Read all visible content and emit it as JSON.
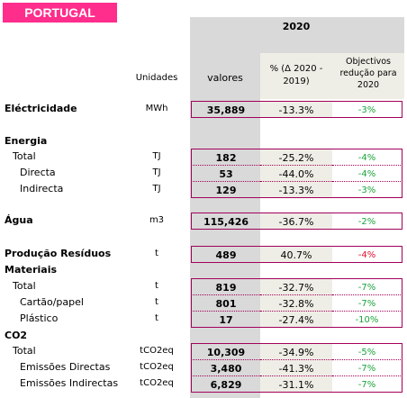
{
  "banner": "PORTUGAL",
  "header": {
    "year": "2020",
    "units_label": "Unidades",
    "valores_label": "valores",
    "pct_label_1": "% (Δ 2020 -",
    "pct_label_2": "2019)",
    "obj_label_1": "Objectivos",
    "obj_label_2": "redução para",
    "obj_label_3": "2020"
  },
  "sections": {
    "energia": "Energia",
    "materiais": "Materiais",
    "co2": "CO2"
  },
  "rows": [
    {
      "label": "Eléctricidade",
      "unit": "MWh",
      "value": "35,889",
      "pct": "-13.3%",
      "obj": "-3%",
      "obj_color": "#1aa33a"
    },
    {
      "label": "Total",
      "unit": "TJ",
      "value": "182",
      "pct": "-25.2%",
      "obj": "-4%",
      "obj_color": "#1aa33a"
    },
    {
      "label": "Directa",
      "unit": "TJ",
      "value": "53",
      "pct": "-44.0%",
      "obj": "-4%",
      "obj_color": "#1aa33a"
    },
    {
      "label": "Indirecta",
      "unit": "TJ",
      "value": "129",
      "pct": "-13.3%",
      "obj": "-3%",
      "obj_color": "#1aa33a"
    },
    {
      "label": "Água",
      "unit": "m3",
      "value": "115,426",
      "pct": "-36.7%",
      "obj": "-2%",
      "obj_color": "#1aa33a"
    },
    {
      "label": "Produção Resíduos",
      "unit": "t",
      "value": "489",
      "pct": "40.7%",
      "obj": "-4%",
      "obj_color": "#e0102a"
    },
    {
      "label": "Total",
      "unit": "t",
      "value": "819",
      "pct": "-32.7%",
      "obj": "-7%",
      "obj_color": "#1aa33a"
    },
    {
      "label": "Cartão/papel",
      "unit": "t",
      "value": "801",
      "pct": "-32.8%",
      "obj": "-7%",
      "obj_color": "#1aa33a"
    },
    {
      "label": "Plástico",
      "unit": "t",
      "value": "17",
      "pct": "-27.4%",
      "obj": "-10%",
      "obj_color": "#1aa33a"
    },
    {
      "label": "Total",
      "unit": "tCO2eq",
      "value": "10,309",
      "pct": "-34.9%",
      "obj": "-5%",
      "obj_color": "#1aa33a"
    },
    {
      "label": "Emissões Directas",
      "unit": "tCO2eq",
      "value": "3,480",
      "pct": "-41.3%",
      "obj": "-7%",
      "obj_color": "#1aa33a"
    },
    {
      "label": "Emissões Indirectas",
      "unit": "tCO2eq",
      "value": "6,829",
      "pct": "-31.1%",
      "obj": "-7%",
      "obj_color": "#1aa33a"
    }
  ]
}
